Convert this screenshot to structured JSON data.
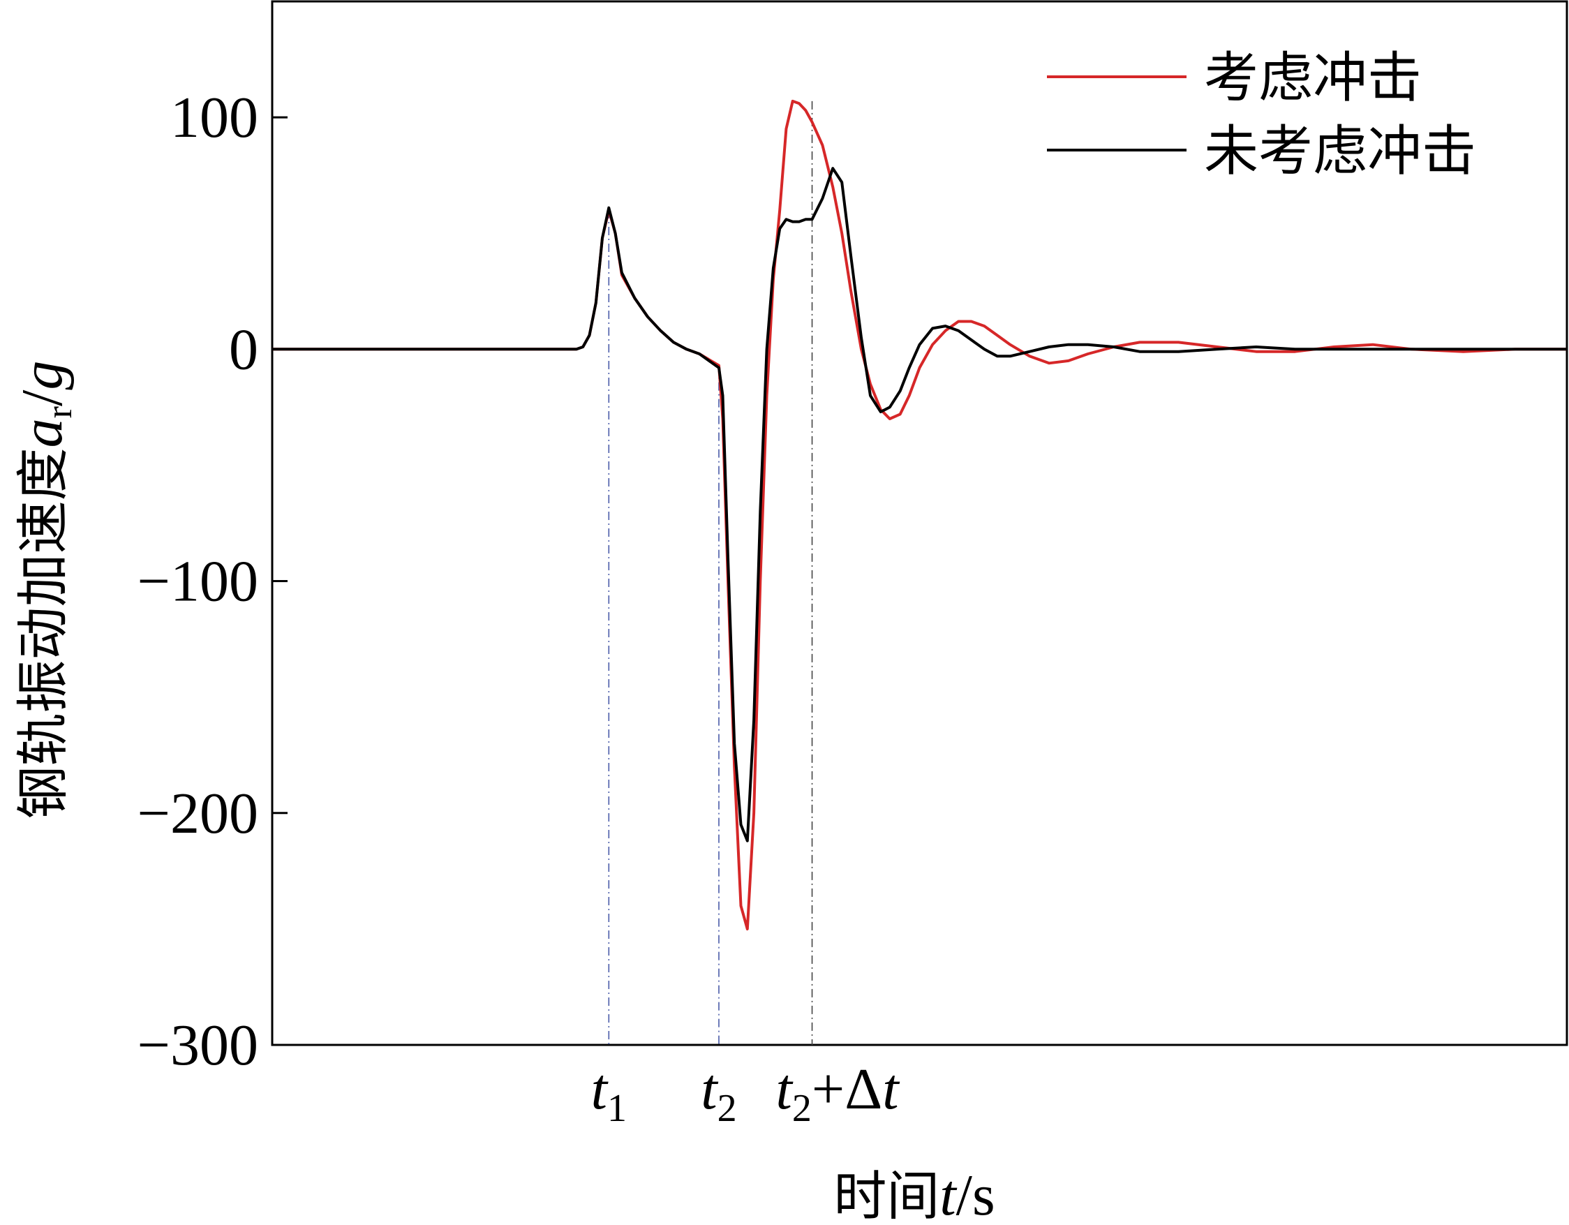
{
  "chart_data": {
    "type": "line",
    "title": "",
    "xlabel": {
      "prefix": "时间",
      "var": "t",
      "suffix": "/s"
    },
    "ylabel": {
      "prefix": "钢轨振动加速度",
      "var": "a",
      "sub": "r",
      "suffix": "/",
      "var2": "g"
    },
    "ylim": [
      -300,
      150
    ],
    "xlim": [
      0,
      1000
    ],
    "yticks": [
      100,
      0,
      -100,
      -200,
      -300
    ],
    "ytick_labels": [
      "100",
      "0",
      "−100",
      "−200",
      "−300"
    ],
    "xmarkers": [
      {
        "x": 260,
        "label_var": "t",
        "label_sub": "1",
        "label_suffix": ""
      },
      {
        "x": 345,
        "label_var": "t",
        "label_sub": "2",
        "label_suffix": ""
      },
      {
        "x": 417,
        "label_var": "t",
        "label_sub": "2",
        "label_suffix": "+Δt"
      }
    ],
    "legend_position": "top-right",
    "series": [
      {
        "name": "考虑冲击",
        "color": "#d62728",
        "x": [
          0,
          17,
          80,
          150,
          210,
          235,
          240,
          245,
          250,
          255,
          260,
          265,
          270,
          280,
          290,
          300,
          310,
          320,
          330,
          345,
          348,
          352,
          357,
          362,
          367,
          372,
          377,
          382,
          387,
          392,
          397,
          402,
          407,
          412,
          417,
          425,
          433,
          440,
          447,
          455,
          462,
          470,
          477,
          485,
          492,
          500,
          510,
          520,
          530,
          540,
          550,
          560,
          570,
          585,
          600,
          615,
          630,
          650,
          670,
          700,
          730,
          760,
          790,
          820,
          850,
          880,
          920,
          960,
          1000
        ],
        "y": [
          0,
          0,
          0,
          0,
          0,
          0,
          1,
          6,
          20,
          48,
          60,
          50,
          32,
          22,
          14,
          8,
          3,
          0,
          -2,
          -7,
          -30,
          -100,
          -180,
          -240,
          -250,
          -200,
          -100,
          -20,
          30,
          60,
          95,
          107,
          106,
          103,
          98,
          88,
          70,
          50,
          25,
          0,
          -15,
          -26,
          -30,
          -28,
          -20,
          -8,
          2,
          8,
          12,
          12,
          10,
          6,
          2,
          -3,
          -6,
          -5,
          -2,
          1,
          3,
          3,
          1,
          -1,
          -1,
          1,
          2,
          0,
          -1,
          0,
          0
        ]
      },
      {
        "name": "未考虑冲击",
        "color": "#000000",
        "x": [
          0,
          17,
          80,
          150,
          210,
          235,
          240,
          245,
          250,
          255,
          260,
          265,
          270,
          280,
          290,
          300,
          310,
          320,
          330,
          345,
          348,
          352,
          357,
          362,
          367,
          372,
          377,
          382,
          387,
          392,
          397,
          402,
          407,
          412,
          417,
          425,
          433,
          440,
          447,
          455,
          462,
          470,
          477,
          485,
          492,
          500,
          510,
          520,
          530,
          540,
          550,
          560,
          570,
          585,
          600,
          615,
          630,
          650,
          670,
          700,
          730,
          760,
          790,
          820,
          850,
          880,
          920,
          960,
          1000
        ],
        "y": [
          0,
          0,
          0,
          0,
          0,
          0,
          1,
          6,
          20,
          48,
          61,
          50,
          33,
          22,
          14,
          8,
          3,
          0,
          -2,
          -8,
          -20,
          -90,
          -170,
          -205,
          -212,
          -160,
          -70,
          0,
          35,
          52,
          56,
          55,
          55,
          56,
          56,
          65,
          78,
          72,
          40,
          5,
          -20,
          -27,
          -25,
          -18,
          -8,
          2,
          9,
          10,
          8,
          4,
          0,
          -3,
          -3,
          -1,
          1,
          2,
          2,
          1,
          -1,
          -1,
          0,
          1,
          0,
          0,
          0,
          0,
          0,
          0,
          0
        ]
      }
    ]
  }
}
